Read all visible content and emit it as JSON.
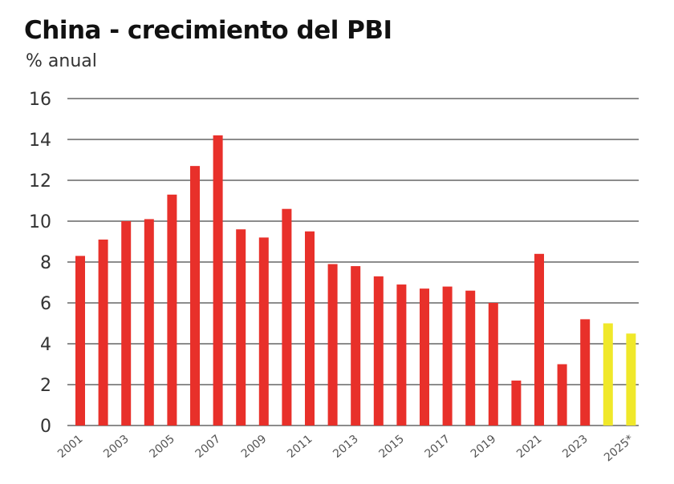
{
  "chart_data": {
    "type": "bar",
    "title": "China - crecimiento del PBI",
    "subtitle": "% anual",
    "categories": [
      "2001",
      "2002",
      "2003",
      "2004",
      "2005",
      "2006",
      "2007",
      "2008",
      "2009",
      "2010",
      "2011",
      "2012",
      "2013",
      "2014",
      "2015",
      "2016",
      "2017",
      "2018",
      "2019",
      "2020",
      "2021",
      "2022",
      "2023",
      "2024",
      "2025*"
    ],
    "tick_labels": [
      "2001",
      "2003",
      "2005",
      "2007",
      "2009",
      "2011",
      "2013",
      "2015",
      "2017",
      "2019",
      "2021",
      "2023",
      "2025*"
    ],
    "values": [
      8.3,
      9.1,
      10.0,
      10.1,
      11.3,
      12.7,
      14.2,
      9.6,
      9.2,
      10.6,
      9.5,
      7.9,
      7.8,
      7.3,
      6.9,
      6.7,
      6.8,
      6.6,
      6.0,
      2.2,
      8.4,
      3.0,
      5.2,
      5.0,
      4.5
    ],
    "projected": [
      false,
      false,
      false,
      false,
      false,
      false,
      false,
      false,
      false,
      false,
      false,
      false,
      false,
      false,
      false,
      false,
      false,
      false,
      false,
      false,
      false,
      false,
      false,
      true,
      true
    ],
    "yticks": [
      0,
      2,
      4,
      6,
      8,
      10,
      12,
      14,
      16
    ],
    "ylim": [
      0,
      16
    ],
    "grid": true,
    "colors": {
      "actual": "#e8302a",
      "projected": "#f0e82a",
      "grid": "#8c8c8c"
    }
  }
}
